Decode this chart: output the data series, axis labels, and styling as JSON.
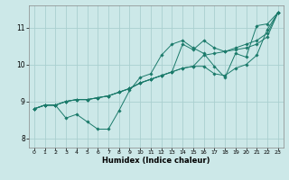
{
  "title": "",
  "xlabel": "Humidex (Indice chaleur)",
  "background_color": "#cce8e8",
  "grid_color": "#aacfcf",
  "line_color": "#1a7a6a",
  "xlim": [
    -0.5,
    23.5
  ],
  "ylim": [
    7.75,
    11.6
  ],
  "xticks": [
    0,
    1,
    2,
    3,
    4,
    5,
    6,
    7,
    8,
    9,
    10,
    11,
    12,
    13,
    14,
    15,
    16,
    17,
    18,
    19,
    20,
    21,
    22,
    23
  ],
  "yticks": [
    8,
    9,
    10,
    11
  ],
  "lines": [
    {
      "x": [
        0,
        1,
        2,
        3,
        4,
        5,
        6,
        7,
        8,
        9,
        10,
        11,
        12,
        13,
        14,
        15,
        16,
        17,
        18,
        19,
        20,
        21,
        22,
        23
      ],
      "y": [
        8.8,
        8.9,
        8.9,
        8.55,
        8.65,
        8.45,
        8.25,
        8.25,
        8.75,
        9.3,
        9.65,
        9.75,
        10.25,
        10.55,
        10.65,
        10.45,
        10.3,
        9.95,
        9.65,
        10.3,
        10.2,
        11.05,
        11.1,
        11.4
      ]
    },
    {
      "x": [
        0,
        1,
        2,
        3,
        4,
        5,
        6,
        7,
        8,
        9,
        10,
        11,
        12,
        13,
        14,
        15,
        16,
        17,
        18,
        19,
        20,
        21,
        22,
        23
      ],
      "y": [
        8.8,
        8.9,
        8.9,
        9.0,
        9.05,
        9.05,
        9.1,
        9.15,
        9.25,
        9.35,
        9.5,
        9.6,
        9.7,
        9.8,
        9.9,
        9.95,
        9.95,
        9.75,
        9.7,
        9.9,
        10.0,
        10.25,
        10.95,
        11.4
      ]
    },
    {
      "x": [
        0,
        1,
        2,
        3,
        4,
        5,
        6,
        7,
        8,
        9,
        10,
        11,
        12,
        13,
        14,
        15,
        16,
        17,
        18,
        19,
        20,
        21,
        22,
        23
      ],
      "y": [
        8.8,
        8.9,
        8.9,
        9.0,
        9.05,
        9.05,
        9.1,
        9.15,
        9.25,
        9.35,
        9.5,
        9.6,
        9.7,
        9.8,
        9.9,
        9.95,
        10.25,
        10.3,
        10.35,
        10.4,
        10.45,
        10.55,
        10.75,
        11.4
      ]
    },
    {
      "x": [
        0,
        1,
        2,
        3,
        4,
        5,
        6,
        7,
        8,
        9,
        10,
        11,
        12,
        13,
        14,
        15,
        16,
        17,
        18,
        19,
        20,
        21,
        22,
        23
      ],
      "y": [
        8.8,
        8.9,
        8.9,
        9.0,
        9.05,
        9.05,
        9.1,
        9.15,
        9.25,
        9.35,
        9.5,
        9.6,
        9.7,
        9.8,
        10.55,
        10.4,
        10.65,
        10.45,
        10.35,
        10.45,
        10.55,
        10.65,
        10.85,
        11.4
      ]
    }
  ],
  "figsize": [
    3.2,
    2.0
  ],
  "dpi": 100
}
